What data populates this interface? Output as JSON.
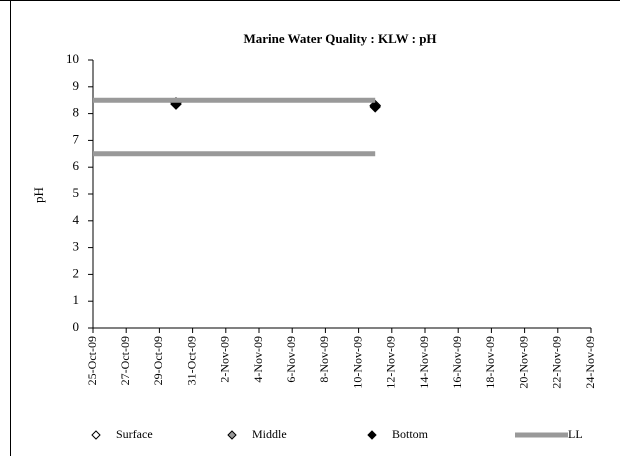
{
  "chart_data": {
    "type": "scatter",
    "title": "Marine Water Quality : KLW : pH",
    "ylabel": "pH",
    "ylim": [
      0,
      10
    ],
    "yticks": [
      0,
      1,
      2,
      3,
      4,
      5,
      6,
      7,
      8,
      9,
      10
    ],
    "xlim": [
      "2009-10-25",
      "2009-11-24"
    ],
    "xticks": [
      {
        "value": "2009-10-25",
        "label": "25-Oct-09"
      },
      {
        "value": "2009-10-27",
        "label": "27-Oct-09"
      },
      {
        "value": "2009-10-29",
        "label": "29-Oct-09"
      },
      {
        "value": "2009-10-31",
        "label": "31-Oct-09"
      },
      {
        "value": "2009-11-02",
        "label": "2-Nov-09"
      },
      {
        "value": "2009-11-04",
        "label": "4-Nov-09"
      },
      {
        "value": "2009-11-06",
        "label": "6-Nov-09"
      },
      {
        "value": "2009-11-08",
        "label": "8-Nov-09"
      },
      {
        "value": "2009-11-10",
        "label": "10-Nov-09"
      },
      {
        "value": "2009-11-12",
        "label": "12-Nov-09"
      },
      {
        "value": "2009-11-14",
        "label": "14-Nov-09"
      },
      {
        "value": "2009-11-16",
        "label": "16-Nov-09"
      },
      {
        "value": "2009-11-18",
        "label": "18-Nov-09"
      },
      {
        "value": "2009-11-20",
        "label": "20-Nov-09"
      },
      {
        "value": "2009-11-22",
        "label": "22-Nov-09"
      },
      {
        "value": "2009-11-24",
        "label": "24-Nov-09"
      }
    ],
    "legend": "bottom",
    "series": [
      {
        "name": "Surface",
        "style": "marker",
        "color": "#ffffff",
        "x": [
          "2009-10-30",
          "2009-11-11"
        ],
        "values": [
          8.4,
          8.3
        ]
      },
      {
        "name": "Middle",
        "style": "marker",
        "color": "#999999",
        "x": [
          "2009-10-30",
          "2009-11-11"
        ],
        "values": [
          8.4,
          8.3
        ]
      },
      {
        "name": "Bottom",
        "style": "marker",
        "color": "#000000",
        "x": [
          "2009-10-30",
          "2009-11-11"
        ],
        "values": [
          8.35,
          8.25
        ]
      },
      {
        "name": "LL",
        "style": "line",
        "color": "#999999",
        "x": [
          "2009-10-25",
          "2009-11-11",
          null,
          "2009-10-25",
          "2009-11-11"
        ],
        "values": [
          8.5,
          8.5,
          null,
          6.5,
          6.5
        ]
      }
    ]
  }
}
